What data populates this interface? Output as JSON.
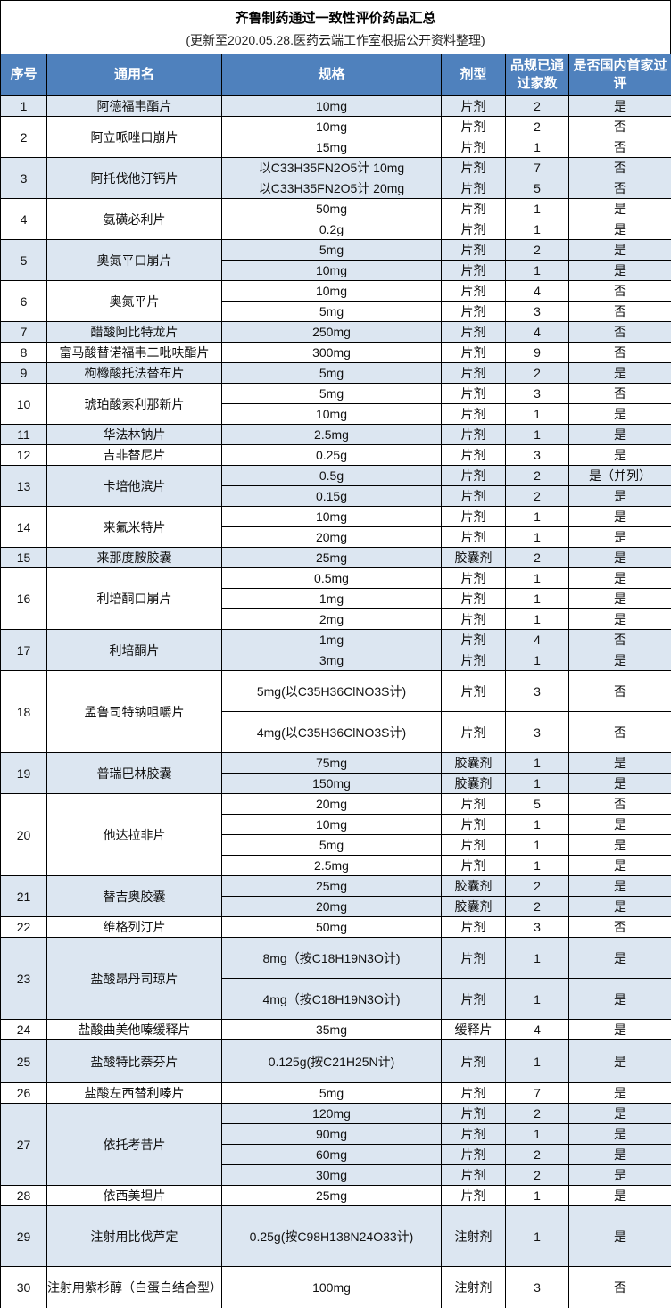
{
  "title": "齐鲁制药通过一致性评价药品汇总",
  "subtitle": "(更新至2020.05.28.医药云端工作室根据公开资料整理)",
  "colors": {
    "header_bg": "#4f81bd",
    "shade_bg": "#dce6f1"
  },
  "headers": [
    "序号",
    "通用名",
    "规格",
    "剂型",
    "品规已通过家数",
    "是否国内首家过评"
  ],
  "groups": [
    {
      "no": "1",
      "name": "阿德福韦酯片",
      "rows": [
        [
          "10mg",
          "片剂",
          "2",
          "是"
        ]
      ]
    },
    {
      "no": "2",
      "name": "阿立哌唑口崩片",
      "rows": [
        [
          "10mg",
          "片剂",
          "2",
          "否"
        ],
        [
          "15mg",
          "片剂",
          "1",
          "否"
        ]
      ]
    },
    {
      "no": "3",
      "name": "阿托伐他汀钙片",
      "rows": [
        [
          "以C33H35FN2O5计 10mg",
          "片剂",
          "7",
          "否"
        ],
        [
          "以C33H35FN2O5计 20mg",
          "片剂",
          "5",
          "否"
        ]
      ]
    },
    {
      "no": "4",
      "name": "氨磺必利片",
      "rows": [
        [
          "50mg",
          "片剂",
          "1",
          "是"
        ],
        [
          "0.2g",
          "片剂",
          "1",
          "是"
        ]
      ]
    },
    {
      "no": "5",
      "name": "奥氮平口崩片",
      "rows": [
        [
          "5mg",
          "片剂",
          "2",
          "是"
        ],
        [
          "10mg",
          "片剂",
          "1",
          "是"
        ]
      ]
    },
    {
      "no": "6",
      "name": "奥氮平片",
      "rows": [
        [
          "10mg",
          "片剂",
          "4",
          "否"
        ],
        [
          "5mg",
          "片剂",
          "3",
          "否"
        ]
      ]
    },
    {
      "no": "7",
      "name": "醋酸阿比特龙片",
      "rows": [
        [
          "250mg",
          "片剂",
          "4",
          "否"
        ]
      ]
    },
    {
      "no": "8",
      "name": "富马酸替诺福韦二吡呋酯片",
      "rows": [
        [
          "300mg",
          "片剂",
          "9",
          "否"
        ]
      ]
    },
    {
      "no": "9",
      "name": "枸橼酸托法替布片",
      "rows": [
        [
          "5mg",
          "片剂",
          "2",
          "是"
        ]
      ]
    },
    {
      "no": "10",
      "name": "琥珀酸索利那新片",
      "rows": [
        [
          "5mg",
          "片剂",
          "3",
          "否"
        ],
        [
          "10mg",
          "片剂",
          "1",
          "是"
        ]
      ]
    },
    {
      "no": "11",
      "name": "华法林钠片",
      "rows": [
        [
          "2.5mg",
          "片剂",
          "1",
          "是"
        ]
      ]
    },
    {
      "no": "12",
      "name": "吉非替尼片",
      "rows": [
        [
          "0.25g",
          "片剂",
          "3",
          "是"
        ]
      ]
    },
    {
      "no": "13",
      "name": "卡培他滨片",
      "rows": [
        [
          "0.5g",
          "片剂",
          "2",
          "是（并列）"
        ],
        [
          "0.15g",
          "片剂",
          "2",
          "是"
        ]
      ]
    },
    {
      "no": "14",
      "name": "来氟米特片",
      "rows": [
        [
          "10mg",
          "片剂",
          "1",
          "是"
        ],
        [
          "20mg",
          "片剂",
          "1",
          "是"
        ]
      ]
    },
    {
      "no": "15",
      "name": "来那度胺胶囊",
      "rows": [
        [
          "25mg",
          "胶囊剂",
          "2",
          "是"
        ]
      ]
    },
    {
      "no": "16",
      "name": "利培酮口崩片",
      "rows": [
        [
          "0.5mg",
          "片剂",
          "1",
          "是"
        ],
        [
          "1mg",
          "片剂",
          "1",
          "是"
        ],
        [
          "2mg",
          "片剂",
          "1",
          "是"
        ]
      ]
    },
    {
      "no": "17",
      "name": "利培酮片",
      "rows": [
        [
          "1mg",
          "片剂",
          "4",
          "否"
        ],
        [
          "3mg",
          "片剂",
          "1",
          "是"
        ]
      ]
    },
    {
      "no": "18",
      "name": "孟鲁司特钠咀嚼片",
      "rows": [
        [
          "5mg(以C35H36ClNO3S计)",
          "片剂",
          "3",
          "否"
        ],
        [
          "4mg(以C35H36ClNO3S计)",
          "片剂",
          "3",
          "否"
        ]
      ]
    },
    {
      "no": "19",
      "name": "普瑞巴林胶囊",
      "rows": [
        [
          "75mg",
          "胶囊剂",
          "1",
          "是"
        ],
        [
          "150mg",
          "胶囊剂",
          "1",
          "是"
        ]
      ]
    },
    {
      "no": "20",
      "name": "他达拉非片",
      "rows": [
        [
          "20mg",
          "片剂",
          "5",
          "否"
        ],
        [
          "10mg",
          "片剂",
          "1",
          "是"
        ],
        [
          "5mg",
          "片剂",
          "1",
          "是"
        ],
        [
          "2.5mg",
          "片剂",
          "1",
          "是"
        ]
      ]
    },
    {
      "no": "21",
      "name": "替吉奥胶囊",
      "rows": [
        [
          "25mg",
          "胶囊剂",
          "2",
          "是"
        ],
        [
          "20mg",
          "胶囊剂",
          "2",
          "是"
        ]
      ]
    },
    {
      "no": "22",
      "name": "维格列汀片",
      "rows": [
        [
          "50mg",
          "片剂",
          "3",
          "否"
        ]
      ]
    },
    {
      "no": "23",
      "name": "盐酸昂丹司琼片",
      "rows": [
        [
          "8mg（按C18H19N3O计)",
          "片剂",
          "1",
          "是"
        ],
        [
          "4mg（按C18H19N3O计)",
          "片剂",
          "1",
          "是"
        ]
      ]
    },
    {
      "no": "24",
      "name": "盐酸曲美他嗪缓释片",
      "rows": [
        [
          "35mg",
          "缓释片",
          "4",
          "是"
        ]
      ]
    },
    {
      "no": "25",
      "name": "盐酸特比萘芬片",
      "rows": [
        [
          "0.125g(按C21H25N计)",
          "片剂",
          "1",
          "是"
        ]
      ]
    },
    {
      "no": "26",
      "name": "盐酸左西替利嗪片",
      "rows": [
        [
          "5mg",
          "片剂",
          "7",
          "是"
        ]
      ]
    },
    {
      "no": "27",
      "name": "依托考昔片",
      "rows": [
        [
          "120mg",
          "片剂",
          "2",
          "是"
        ],
        [
          "90mg",
          "片剂",
          "1",
          "是"
        ],
        [
          "60mg",
          "片剂",
          "2",
          "是"
        ],
        [
          "30mg",
          "片剂",
          "2",
          "是"
        ]
      ]
    },
    {
      "no": "28",
      "name": "依西美坦片",
      "rows": [
        [
          "25mg",
          "片剂",
          "1",
          "是"
        ]
      ]
    },
    {
      "no": "29",
      "name": "注射用比伐芦定",
      "rows": [
        [
          "0.25g(按C98H138N24O33计)",
          "注射剂",
          "1",
          "是"
        ]
      ]
    },
    {
      "no": "30",
      "name": "注射用紫杉醇（白蛋白结合型）",
      "rows": [
        [
          "100mg",
          "注射剂",
          "3",
          "否"
        ]
      ]
    }
  ]
}
